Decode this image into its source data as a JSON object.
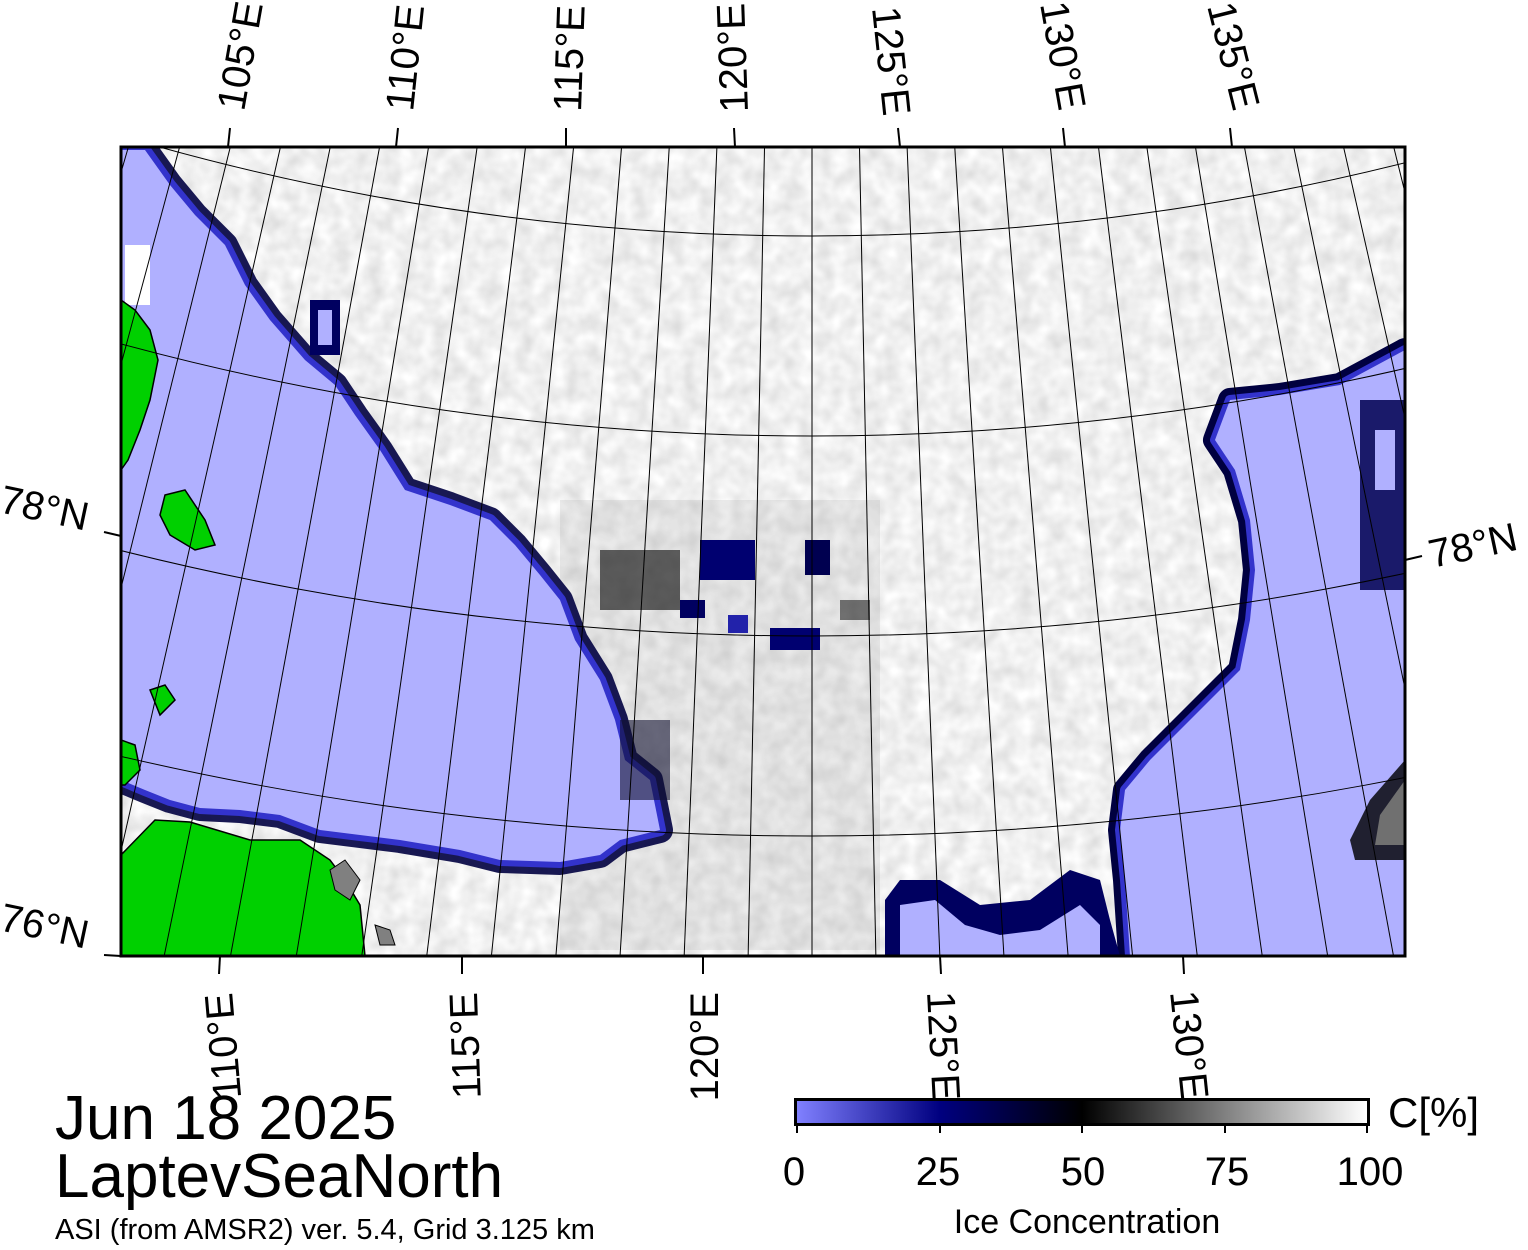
{
  "map": {
    "region": "LaptevSeaNorth",
    "colors": {
      "land": "#00d000",
      "open_water": "#b0b0ff",
      "coast_outline": "#000000",
      "frame": "#000000"
    },
    "lon_labels_top": [
      "105°E",
      "110°E",
      "115°E",
      "120°E",
      "125°E",
      "130°E",
      "135°E"
    ],
    "lon_labels_bottom": [
      "110°E",
      "115°E",
      "120°E",
      "125°E",
      "130°E"
    ],
    "lat_labels_left": [
      "78°N",
      "76°N"
    ],
    "lat_labels_right": [
      "78°N"
    ],
    "graticule": {
      "lon_step_deg": 1,
      "lat_step_deg": 1
    }
  },
  "header": {
    "date": "Jun 18 2025",
    "region_name": "LaptevSeaNorth",
    "product": "ASI (from AMSR2) ver. 5.4,  Grid 3.125 km"
  },
  "colorbar": {
    "ticks": [
      "0",
      "25",
      "50",
      "75",
      "100"
    ],
    "unit": "C[%]",
    "title": "Ice Concentration",
    "stops": [
      {
        "value": 0,
        "color": "#8080ff"
      },
      {
        "value": 25,
        "color": "#000080"
      },
      {
        "value": 50,
        "color": "#000000"
      },
      {
        "value": 75,
        "color": "#808080"
      },
      {
        "value": 100,
        "color": "#ffffff"
      }
    ]
  }
}
